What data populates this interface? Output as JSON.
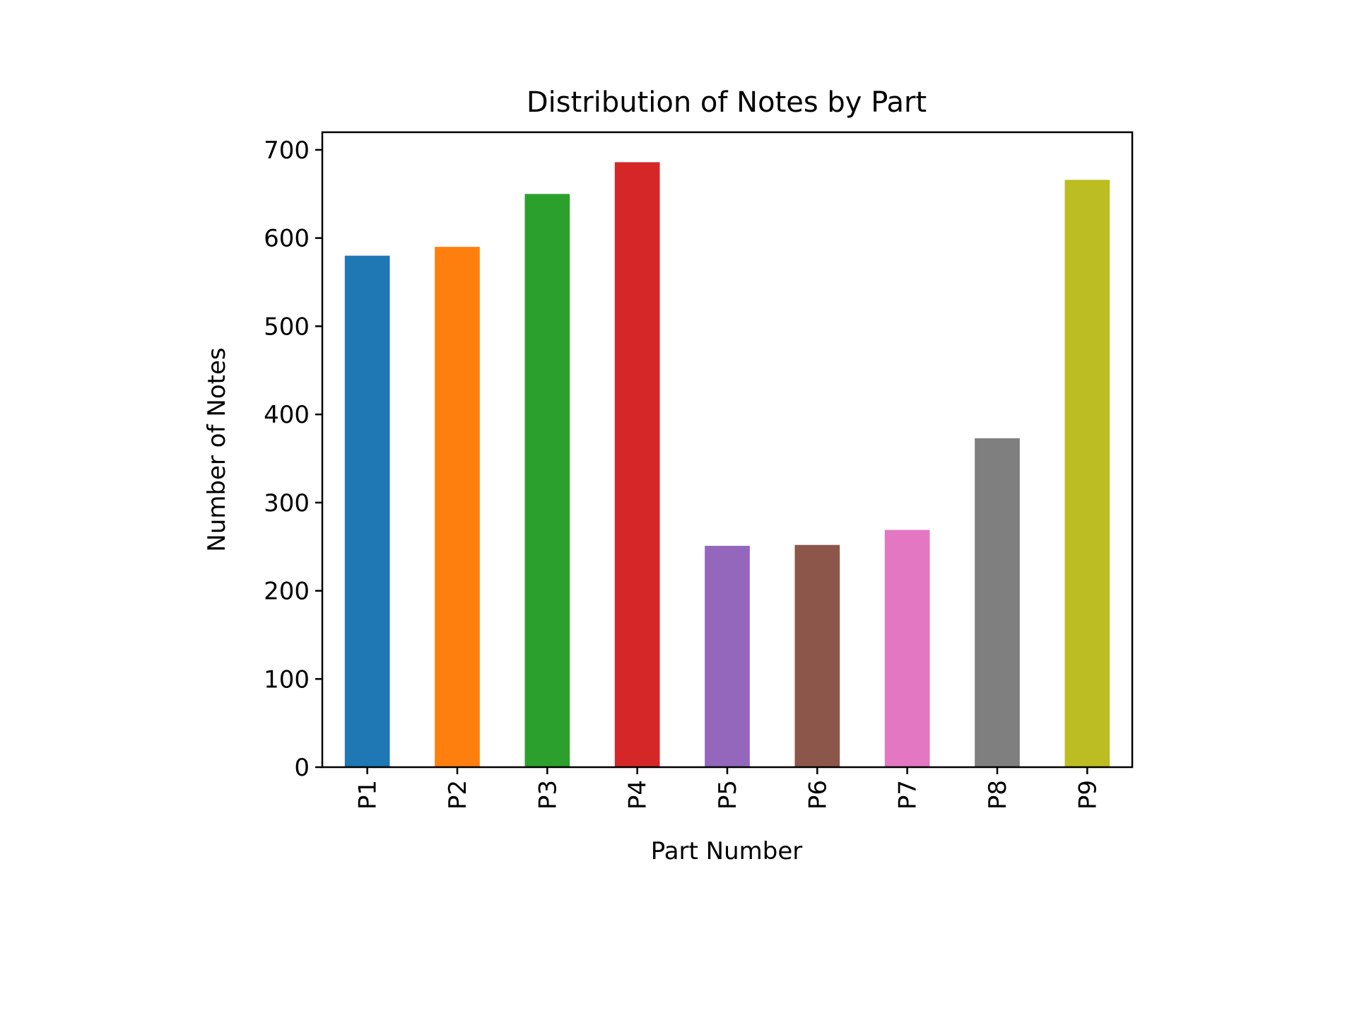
{
  "chart_data": {
    "type": "bar",
    "title": "Distribution of Notes by Part",
    "xlabel": "Part Number",
    "ylabel": "Number of Notes",
    "categories": [
      "P1",
      "P2",
      "P3",
      "P4",
      "P5",
      "P6",
      "P7",
      "P8",
      "P9"
    ],
    "values": [
      580,
      590,
      650,
      686,
      251,
      252,
      269,
      373,
      666
    ],
    "colors": [
      "#1f77b4",
      "#ff7f0e",
      "#2ca02c",
      "#d62728",
      "#9467bd",
      "#8c564b",
      "#e377c2",
      "#7f7f7f",
      "#bcbd22"
    ],
    "ylim": [
      0,
      720
    ],
    "yticks": [
      0,
      100,
      200,
      300,
      400,
      500,
      600,
      700
    ],
    "ytick_labels": [
      "0",
      "100",
      "200",
      "300",
      "400",
      "500",
      "600",
      "700"
    ],
    "grid": false,
    "legend": false
  }
}
